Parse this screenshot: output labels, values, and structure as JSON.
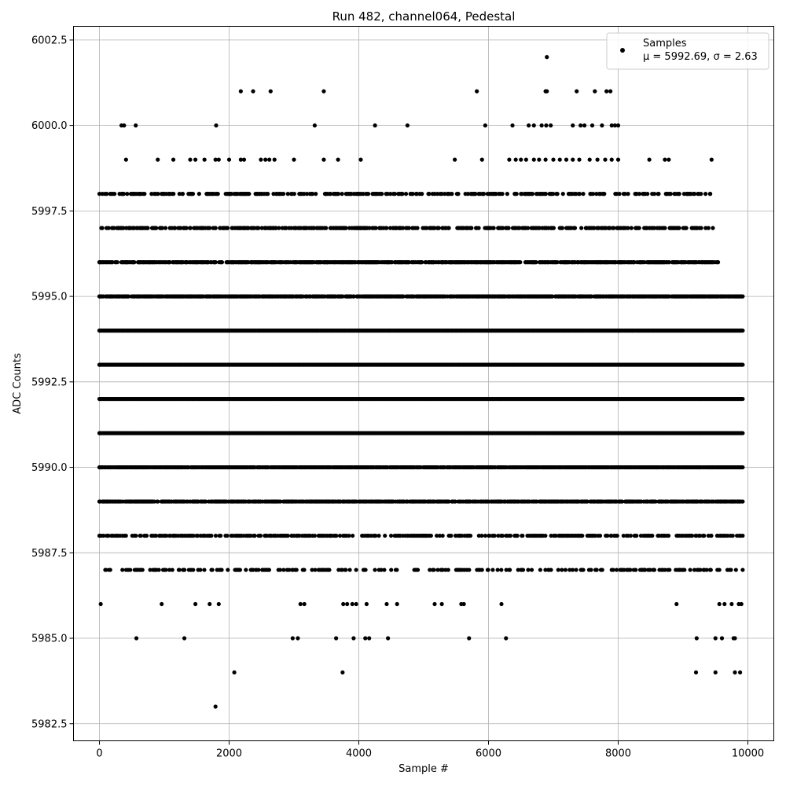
{
  "chart_data": {
    "type": "scatter",
    "title": "Run 482, channel064, Pedestal",
    "xlabel": "Sample #",
    "ylabel": "ADC Counts",
    "xlim": [
      -400,
      10400
    ],
    "ylim": [
      5982.0,
      6002.9
    ],
    "xticks": [
      0,
      2000,
      4000,
      6000,
      8000,
      10000
    ],
    "xtick_labels": [
      "0",
      "2000",
      "4000",
      "6000",
      "8000",
      "10000"
    ],
    "yticks": [
      5982.5,
      5985.0,
      5987.5,
      5990.0,
      5992.5,
      5995.0,
      5997.5,
      6000.0,
      6002.5
    ],
    "ytick_labels": [
      "5982.5",
      "5985.0",
      "5987.5",
      "5990.0",
      "5992.5",
      "5995.0",
      "5997.5",
      "6000.0",
      "6002.5"
    ],
    "grid": true,
    "legend": {
      "placement": "top-right",
      "entries": [
        "Samples",
        "μ = 5992.69, σ = 2.63"
      ]
    },
    "marker_color": "#000000",
    "series": [
      {
        "name": "Samples",
        "x_range": [
          0,
          9920
        ],
        "mean": 5992.69,
        "std": 2.63,
        "levels": [
          {
            "y": 6002,
            "x": [
              6900
            ]
          },
          {
            "y": 6001,
            "x": [
              2180,
              2370,
              2640,
              3460,
              5820,
              6880,
              6900,
              7360,
              7640,
              7820,
              7880
            ]
          },
          {
            "y": 6000,
            "x": [
              340,
              380,
              560,
              1800,
              3320,
              4250,
              4750,
              5950,
              6370,
              6620,
              6700,
              6820,
              6890,
              6960,
              7300,
              7420,
              7480,
              7600,
              7750,
              7900,
              7950,
              8000
            ]
          },
          {
            "y": 5999,
            "x": [
              410,
              900,
              1140,
              1400,
              1480,
              1620,
              1790,
              1840,
              2000,
              2180,
              2230,
              2490,
              2560,
              2620,
              2700,
              3000,
              3460,
              3680,
              4030,
              5480,
              5900,
              6320,
              6420,
              6500,
              6580,
              6700,
              6780,
              6880,
              7000,
              7100,
              7200,
              7300,
              7400,
              7560,
              7680,
              7800,
              7900,
              8000,
              8480,
              8720,
              8780,
              9440
            ]
          },
          {
            "y": 5986,
            "x": [
              20,
              960,
              1480,
              1700,
              1840,
              3100,
              3160,
              3760,
              3820,
              3900,
              3960,
              4120,
              4430,
              4590,
              5170,
              5280,
              5580,
              5620,
              6200,
              8900,
              9560,
              9640,
              9750,
              9860,
              9900
            ]
          },
          {
            "y": 5985,
            "x": [
              570,
              1310,
              2980,
              3060,
              3650,
              3920,
              4100,
              4160,
              4450,
              5700,
              6270,
              9210,
              9500,
              9600,
              9780,
              9800
            ]
          },
          {
            "y": 5984,
            "x": [
              2080,
              3750,
              9200,
              9500,
              9800,
              9880
            ]
          },
          {
            "y": 5983,
            "x": [
              1790
            ]
          }
        ],
        "bands": [
          {
            "y": 5998,
            "x_range": [
              0,
              9420
            ],
            "density": 0.35
          },
          {
            "y": 5997,
            "x_range": [
              30,
              9460
            ],
            "density": 0.45
          },
          {
            "y": 5996,
            "x_range": [
              0,
              9540
            ],
            "density": 0.7
          },
          {
            "y": 5995,
            "x_range": [
              0,
              9920
            ],
            "density": 0.85
          },
          {
            "y": 5994,
            "x_range": [
              0,
              9920
            ],
            "density": 1.0
          },
          {
            "y": 5993,
            "x_range": [
              0,
              9920
            ],
            "density": 1.0
          },
          {
            "y": 5992,
            "x_range": [
              0,
              9920
            ],
            "density": 1.0
          },
          {
            "y": 5991,
            "x_range": [
              0,
              9920
            ],
            "density": 1.0
          },
          {
            "y": 5990,
            "x_range": [
              0,
              9920
            ],
            "density": 0.9
          },
          {
            "y": 5989,
            "x_range": [
              0,
              9920
            ],
            "density": 0.7
          },
          {
            "y": 5988,
            "x_range": [
              0,
              9920
            ],
            "density": 0.35
          },
          {
            "y": 5987,
            "x_range": [
              90,
              9920
            ],
            "density": 0.25
          }
        ]
      }
    ]
  }
}
